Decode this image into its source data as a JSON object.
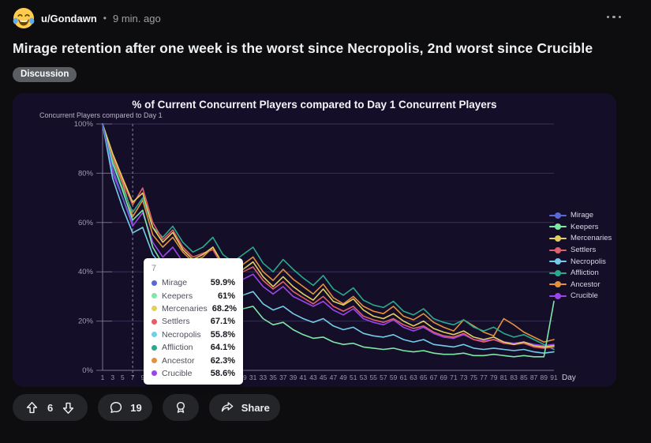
{
  "post": {
    "avatar": "laughing-crying-emoji",
    "username": "u/Gondawn",
    "separator": "•",
    "time": "9 min. ago",
    "title": "Mirage retention after one week is the worst since Necropolis, 2nd worst since Crucible",
    "flair": "Discussion"
  },
  "actions": {
    "upvote_count": "6",
    "comment_count": "19",
    "share_label": "Share"
  },
  "theme": {
    "page_bg": "#0d0d0f",
    "chart_bg": "#150e29",
    "pill_bg": "#232528",
    "flair_bg": "#5a5e63",
    "tooltip_bg": "#ffffff",
    "gridline": "#363055",
    "axis": "#7b7690"
  },
  "chart_data": {
    "type": "line",
    "title": "% of Current Concurrent Players compared to Day 1 Concurrent Players",
    "note": "Concurrent Players compared to Day 1",
    "xlabel": "Day",
    "xlim": [
      1,
      91
    ],
    "ylim": [
      0,
      100
    ],
    "grid": true,
    "legend_position": "right",
    "y_ticks": [
      100,
      80,
      60,
      40,
      20,
      0
    ],
    "y_tick_suffix": "%",
    "x": [
      1,
      3,
      5,
      7,
      9,
      11,
      13,
      15,
      17,
      19,
      21,
      23,
      25,
      27,
      29,
      31,
      33,
      35,
      37,
      39,
      41,
      43,
      45,
      47,
      49,
      51,
      53,
      55,
      57,
      59,
      61,
      63,
      65,
      67,
      69,
      71,
      73,
      75,
      77,
      79,
      81,
      83,
      85,
      87,
      89,
      91
    ],
    "series": [
      {
        "name": "Mirage",
        "color": "#5a68d6",
        "values": [
          100,
          82,
          70,
          59.9
        ]
      },
      {
        "name": "Keepers",
        "color": "#7ce8a4",
        "values": [
          100,
          84,
          73,
          61,
          65,
          50,
          43,
          45,
          37,
          32,
          33,
          34,
          27,
          24,
          25,
          26,
          21,
          18.5,
          19.5,
          16.5,
          14.5,
          13,
          13.5,
          11.5,
          10.5,
          11,
          9.5,
          9,
          8.5,
          9,
          8,
          7.5,
          8,
          7,
          6.5,
          6.5,
          7,
          6,
          6,
          6.5,
          6,
          5.5,
          6,
          5.5,
          5.5,
          28
        ]
      },
      {
        "name": "Mercenaries",
        "color": "#e3cf5d",
        "values": [
          100,
          88,
          78,
          68.2,
          72,
          58,
          52,
          56,
          49,
          45,
          47,
          50,
          43,
          39,
          41,
          44,
          38,
          34,
          38,
          34,
          31,
          28.5,
          33,
          28,
          26.5,
          29,
          24.5,
          22,
          21,
          23,
          20,
          18,
          20,
          17,
          15.5,
          14.5,
          16,
          13.5,
          12.5,
          13.5,
          11.5,
          10.5,
          11.5,
          10,
          9.5,
          10
        ]
      },
      {
        "name": "Settlers",
        "color": "#e0606a",
        "values": [
          100,
          87,
          77,
          67.1,
          74,
          60,
          53,
          57,
          50,
          46,
          47.5,
          49,
          42,
          38,
          40,
          42,
          36.5,
          33,
          36,
          32,
          29.5,
          27,
          30,
          26,
          24,
          26,
          22,
          20.5,
          19.5,
          21,
          18.5,
          17,
          18,
          15.5,
          14,
          13.5,
          15,
          12.5,
          11.5,
          12.5,
          11,
          10.5,
          11,
          9.5,
          9,
          9.5
        ]
      },
      {
        "name": "Necropolis",
        "color": "#74cce8",
        "values": [
          100,
          78,
          66,
          55.8,
          58,
          47,
          42,
          45,
          38,
          34,
          36,
          38,
          32,
          29,
          30.5,
          32,
          27,
          24.5,
          26,
          23,
          21,
          19.5,
          21,
          18,
          16.5,
          17.5,
          15,
          14,
          13.5,
          14.5,
          12.5,
          11.5,
          12.5,
          10.5,
          10,
          9.5,
          10.5,
          9,
          8.5,
          9,
          8.5,
          8,
          8.5,
          7.5,
          7,
          7.5
        ]
      },
      {
        "name": "Affliction",
        "color": "#2ba98c",
        "values": [
          100,
          85,
          74,
          64.1,
          70,
          58,
          54,
          58.5,
          52,
          48,
          50,
          54,
          47,
          44,
          47,
          50,
          43.5,
          40,
          45,
          41,
          37.5,
          34.5,
          38.5,
          33,
          30.5,
          33.5,
          28.5,
          26.5,
          25.5,
          28,
          24,
          22.5,
          25,
          21,
          19.5,
          18.5,
          20.5,
          17.5,
          16,
          17.5,
          15,
          13.5,
          14.5,
          12.5,
          10.5,
          8.5
        ]
      },
      {
        "name": "Ancestor",
        "color": "#e2913f",
        "values": [
          100,
          86,
          76,
          62.3,
          69,
          55,
          50,
          54,
          48,
          44,
          46,
          50,
          43,
          40,
          43,
          46,
          40,
          36.5,
          41,
          37,
          34,
          31,
          35,
          29.5,
          27,
          30,
          26,
          24,
          23,
          26,
          22,
          20.5,
          23,
          19.5,
          17.5,
          16,
          20.5,
          18,
          15.5,
          14,
          21,
          18.5,
          15.5,
          13.5,
          11.5,
          12.5
        ]
      },
      {
        "name": "Crucible",
        "color": "#9a45e8",
        "values": [
          100,
          80,
          70,
          58.6,
          64,
          52,
          46,
          50,
          44,
          40,
          42,
          45,
          38,
          35,
          37,
          39,
          34,
          31,
          34,
          30,
          28,
          26,
          28,
          24.5,
          22.5,
          25,
          21,
          19.5,
          18.5,
          20.5,
          17.5,
          16,
          17.5,
          15,
          13.5,
          13,
          14.5,
          12.5,
          12,
          12.5,
          11.5,
          11,
          11.5,
          10.5,
          10,
          10.5
        ]
      }
    ],
    "hover": {
      "label": "7",
      "day": 7,
      "values": [
        "59.9%",
        "61%",
        "68.2%",
        "67.1%",
        "55.8%",
        "64.1%",
        "62.3%",
        "58.6%"
      ]
    }
  }
}
